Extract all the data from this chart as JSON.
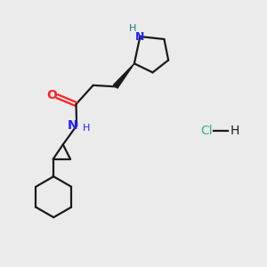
{
  "background_color": "#ebebeb",
  "bond_color": "#1a1a1a",
  "N_color": "#2020ff",
  "O_color": "#ff2020",
  "Cl_color": "#3cb371",
  "NH_color": "#1a7a7a",
  "figsize": [
    3.0,
    3.0
  ],
  "dpi": 100,
  "xlim": [
    0,
    10
  ],
  "ylim": [
    0,
    10
  ]
}
